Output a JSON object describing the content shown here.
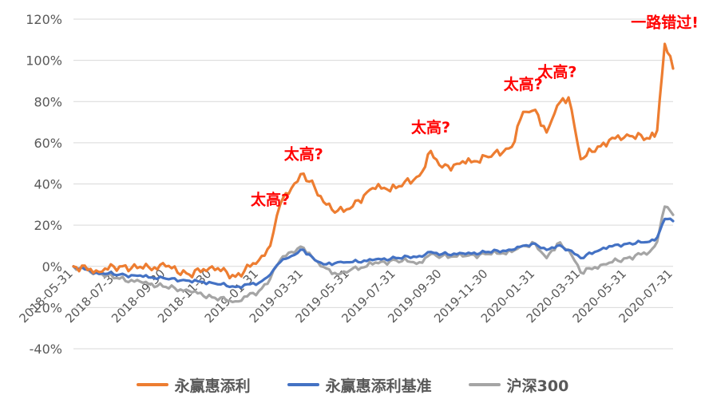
{
  "chart_data": {
    "type": "line",
    "title": "",
    "xlabel": "",
    "ylabel": "",
    "ylim": [
      -40,
      120
    ],
    "yticks": [
      "120%",
      "100%",
      "80%",
      "60%",
      "40%",
      "20%",
      "0%",
      "-20%",
      "-40%"
    ],
    "x_ticks": [
      "2018-05-31",
      "2018-07-31",
      "2018-09-30",
      "2018-11-30",
      "2019-01-31",
      "2019-03-31",
      "2019-05-31",
      "2019-07-31",
      "2019-09-30",
      "2019-11-30",
      "2020-01-31",
      "2020-03-31",
      "2020-05-31",
      "2020-07-31"
    ],
    "grid": true,
    "legend_position": "bottom",
    "x": [
      "2018-05-31",
      "2018-06-30",
      "2018-07-31",
      "2018-08-31",
      "2018-09-30",
      "2018-10-31",
      "2018-11-30",
      "2018-12-31",
      "2019-01-31",
      "2019-02-15",
      "2019-02-28",
      "2019-03-15",
      "2019-03-31",
      "2019-04-15",
      "2019-04-30",
      "2019-05-15",
      "2019-05-31",
      "2019-06-30",
      "2019-07-31",
      "2019-08-31",
      "2019-09-15",
      "2019-09-30",
      "2019-10-31",
      "2019-11-30",
      "2019-12-31",
      "2020-01-15",
      "2020-01-31",
      "2020-02-15",
      "2020-02-29",
      "2020-03-15",
      "2020-03-31",
      "2020-04-30",
      "2020-05-31",
      "2020-06-30",
      "2020-07-10",
      "2020-07-20",
      "2020-07-31"
    ],
    "series": [
      {
        "name": "永赢惠添利",
        "color": "#ed7d31",
        "values": [
          0,
          -2,
          0,
          -1,
          0,
          -4,
          0,
          -5,
          3,
          10,
          30,
          38,
          45,
          38,
          30,
          27,
          28,
          38,
          38,
          44,
          56,
          48,
          50,
          53,
          58,
          75,
          76,
          65,
          78,
          82,
          52,
          60,
          64,
          62,
          66,
          108,
          96
        ]
      },
      {
        "name": "永赢惠添利基准",
        "color": "#4472c4",
        "values": [
          0,
          -3,
          -4,
          -5,
          -6,
          -7,
          -8,
          -10,
          -8,
          -4,
          2,
          5,
          8,
          3,
          1,
          2,
          2,
          3,
          4,
          5,
          7,
          6,
          6,
          7,
          8,
          10,
          11,
          8,
          10,
          8,
          4,
          9,
          11,
          12,
          14,
          23,
          22
        ]
      },
      {
        "name": "沪深300",
        "color": "#a5a5a5",
        "values": [
          0,
          -3,
          -6,
          -8,
          -10,
          -12,
          -15,
          -17,
          -12,
          -6,
          3,
          7,
          9,
          3,
          -1,
          -4,
          -2,
          1,
          3,
          2,
          6,
          5,
          5,
          6,
          7,
          10,
          11,
          4,
          11,
          8,
          -3,
          1,
          4,
          7,
          12,
          29,
          25
        ]
      }
    ],
    "annotations": [
      {
        "text": "太高?",
        "x": "2019-02-15",
        "y": 30
      },
      {
        "text": "太高?",
        "x": "2019-03-31",
        "y": 52
      },
      {
        "text": "太高?",
        "x": "2019-09-15",
        "y": 65
      },
      {
        "text": "太高?",
        "x": "2020-01-15",
        "y": 86
      },
      {
        "text": "太高?",
        "x": "2020-02-29",
        "y": 92
      },
      {
        "text": "一路错过!",
        "x": "2020-07-20",
        "y": 116
      }
    ]
  }
}
